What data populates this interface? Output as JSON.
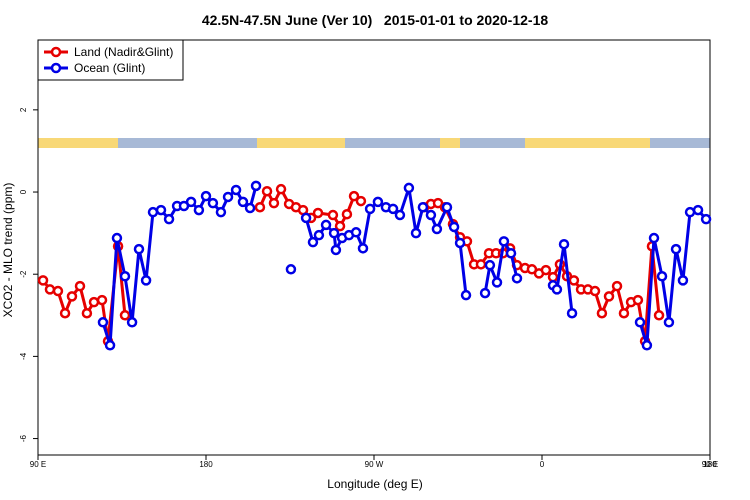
{
  "chart_data": {
    "type": "line",
    "title": "42.5N-47.5N June (Ver 10)   2015-01-01 to 2020-12-18",
    "x_label": "Longitude (deg E)",
    "y_label": "XCO2 - MLO trend (ppm)",
    "xlim": [
      90,
      450
    ],
    "ylim": [
      -6.4,
      3.7
    ],
    "xticks": [
      {
        "value": 90,
        "label": "90 E"
      },
      180,
      {
        "value": 270,
        "label": "90 W"
      },
      {
        "value": 360,
        "label": "0"
      },
      {
        "value": 450,
        "label": "90 E"
      },
      {
        "value": 540,
        "label": "180"
      }
    ],
    "yticks": [
      -6,
      -4,
      -2,
      0,
      2
    ],
    "legend": "top-left",
    "series": [
      {
        "name": "Land (Nadir&Glint)",
        "color": "#e60000",
        "x": [
          92.7,
          96.4,
          100.7,
          104.5,
          108.2,
          112.5,
          116.2,
          120.0,
          124.3,
          127.5,
          132.9,
          136.6,
          null,
          208.9,
          212.7,
          216.4,
          220.2,
          224.5,
          228.2,
          232.0,
          236.3,
          240.0,
          248.0,
          251.8,
          255.5,
          259.3,
          263.0,
          null,
          296.8,
          300.5,
          304.3,
          308.0,
          312.3,
          316.1,
          319.8,
          323.6,
          327.3,
          331.6,
          335.4,
          339.1,
          342.9,
          346.6,
          350.9,
          354.6,
          358.4,
          362.1,
          365.9,
          369.6,
          373.4,
          377.1,
          380.9,
          384.6,
          388.4,
          392.1,
          395.9,
          400.2,
          403.9,
          407.7,
          411.4,
          415.2,
          418.9,
          422.7
        ],
        "values": [
          -2.15,
          -2.37,
          -2.41,
          -2.95,
          -2.54,
          -2.29,
          -2.95,
          -2.68,
          -2.63,
          -3.63,
          -1.32,
          -3.0,
          null,
          -0.37,
          0.02,
          -0.27,
          0.07,
          -0.29,
          -0.37,
          -0.44,
          -0.63,
          -0.51,
          -0.56,
          -0.83,
          -0.54,
          -0.1,
          -0.22,
          null,
          -0.37,
          -0.29,
          -0.27,
          -0.37,
          -0.78,
          -1.1,
          -1.2,
          -1.76,
          -1.76,
          -1.49,
          -1.49,
          -1.49,
          -1.37,
          -1.78,
          -1.85,
          -1.88,
          -1.98,
          -1.9,
          -2.07,
          -1.76,
          -2.05,
          -2.15,
          -2.37,
          -2.37,
          -2.41,
          -2.95,
          -2.54,
          -2.29,
          -2.95,
          -2.68,
          -2.63,
          -3.63,
          -1.32,
          -3.0
        ]
      },
      {
        "name": "Ocean (Glint)",
        "color": "#0000e6",
        "x": [
          124.8,
          128.6,
          132.3,
          136.6,
          140.4,
          144.1,
          147.9,
          151.6,
          155.9,
          160.2,
          164.5,
          168.2,
          172.0,
          176.2,
          180.0,
          183.7,
          188.0,
          191.8,
          196.1,
          199.8,
          203.6,
          206.8,
          null,
          225.5,
          null,
          233.6,
          237.3,
          240.5,
          244.3,
          248.6,
          249.6,
          252.9,
          256.6,
          260.4,
          264.1,
          267.9,
          272.1,
          276.4,
          280.2,
          283.9,
          288.7,
          292.5,
          296.2,
          300.5,
          303.7,
          309.1,
          312.9,
          316.1,
          319.3,
          null,
          329.5,
          332.1,
          335.9,
          339.6,
          343.4,
          346.6,
          null,
          365.9,
          368.0,
          371.8,
          376.1,
          null,
          412.5,
          416.2,
          420.0,
          424.3,
          428.0,
          431.8,
          435.5,
          439.3,
          443.6,
          447.9
        ],
        "values": [
          -3.17,
          -3.73,
          -1.12,
          -2.05,
          -3.17,
          -1.39,
          -2.15,
          -0.49,
          -0.44,
          -0.66,
          -0.34,
          -0.34,
          -0.24,
          -0.44,
          -0.1,
          -0.27,
          -0.49,
          -0.12,
          0.05,
          -0.24,
          -0.39,
          0.15,
          null,
          -1.88,
          null,
          -0.63,
          -1.22,
          -1.05,
          -0.8,
          -1.0,
          -1.41,
          -1.12,
          -1.05,
          -0.98,
          -1.37,
          -0.41,
          -0.24,
          -0.37,
          -0.41,
          -0.56,
          0.1,
          -1.0,
          -0.37,
          -0.56,
          -0.9,
          -0.37,
          -0.85,
          -1.24,
          -2.51,
          null,
          -2.46,
          -1.78,
          -2.2,
          -1.2,
          -1.49,
          -2.1,
          null,
          -2.27,
          -2.37,
          -1.27,
          -2.95,
          null,
          -3.17,
          -3.73,
          -1.12,
          -2.05,
          -3.17,
          -1.39,
          -2.15,
          -0.49,
          -0.44,
          -0.66
        ]
      }
    ]
  }
}
